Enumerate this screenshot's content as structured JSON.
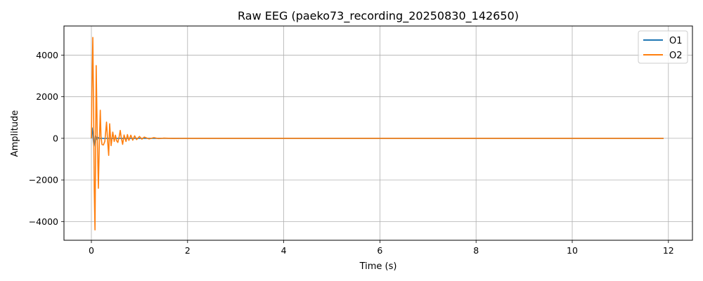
{
  "chart_data": {
    "type": "line",
    "title": "Raw EEG (paeko73_recording_20250830_142650)",
    "xlabel": "Time (s)",
    "ylabel": "Amplitude",
    "xlim": [
      -0.57,
      12.5
    ],
    "ylim": [
      -4900,
      5400
    ],
    "xticks": [
      0,
      2,
      4,
      6,
      8,
      10,
      12
    ],
    "xtick_labels": [
      "0",
      "2",
      "4",
      "6",
      "8",
      "10",
      "12"
    ],
    "yticks": [
      -4000,
      -2000,
      0,
      2000,
      4000
    ],
    "ytick_labels": [
      "−4000",
      "−2000",
      "0",
      "2000",
      "4000"
    ],
    "grid": true,
    "legend_position": "top-right",
    "series": [
      {
        "name": "O1",
        "color": "#1f77b4",
        "points": [
          [
            0,
            0
          ],
          [
            0.005,
            250
          ],
          [
            0.015,
            500
          ],
          [
            0.025,
            300
          ],
          [
            0.04,
            -100
          ],
          [
            0.055,
            -380
          ],
          [
            0.07,
            -150
          ],
          [
            0.085,
            120
          ],
          [
            0.1,
            60
          ],
          [
            0.12,
            -80
          ],
          [
            0.14,
            40
          ],
          [
            0.17,
            -20
          ],
          [
            0.2,
            10
          ],
          [
            0.25,
            -5
          ],
          [
            0.3,
            0
          ],
          [
            1.0,
            0
          ],
          [
            11.9,
            0
          ]
        ]
      },
      {
        "name": "O2",
        "color": "#ff7f0e",
        "points": [
          [
            0,
            0
          ],
          [
            0.01,
            2200
          ],
          [
            0.03,
            4850
          ],
          [
            0.045,
            1500
          ],
          [
            0.06,
            -2500
          ],
          [
            0.075,
            -4400
          ],
          [
            0.085,
            -1500
          ],
          [
            0.1,
            3500
          ],
          [
            0.12,
            500
          ],
          [
            0.145,
            -2400
          ],
          [
            0.165,
            -300
          ],
          [
            0.185,
            1350
          ],
          [
            0.2,
            100
          ],
          [
            0.22,
            -300
          ],
          [
            0.25,
            -320
          ],
          [
            0.28,
            -150
          ],
          [
            0.315,
            780
          ],
          [
            0.34,
            -200
          ],
          [
            0.36,
            -820
          ],
          [
            0.38,
            700
          ],
          [
            0.41,
            -350
          ],
          [
            0.445,
            300
          ],
          [
            0.475,
            -150
          ],
          [
            0.5,
            150
          ],
          [
            0.525,
            -120
          ],
          [
            0.55,
            -200
          ],
          [
            0.58,
            100
          ],
          [
            0.6,
            380
          ],
          [
            0.62,
            50
          ],
          [
            0.65,
            -290
          ],
          [
            0.68,
            160
          ],
          [
            0.72,
            -150
          ],
          [
            0.75,
            180
          ],
          [
            0.78,
            -100
          ],
          [
            0.82,
            150
          ],
          [
            0.86,
            -90
          ],
          [
            0.9,
            120
          ],
          [
            0.94,
            -60
          ],
          [
            1.0,
            90
          ],
          [
            1.05,
            -40
          ],
          [
            1.1,
            60
          ],
          [
            1.2,
            -30
          ],
          [
            1.3,
            35
          ],
          [
            1.4,
            -15
          ],
          [
            1.5,
            10
          ],
          [
            1.7,
            -5
          ],
          [
            2.0,
            0
          ],
          [
            11.9,
            0
          ]
        ]
      }
    ]
  }
}
